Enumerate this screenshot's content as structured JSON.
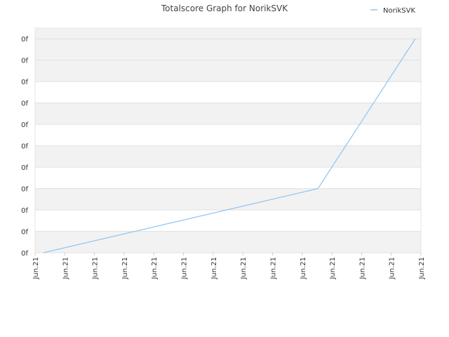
{
  "chart_data": {
    "type": "line",
    "title": "Totalscore Graph for NorikSVK",
    "xlim": [
      0,
      13
    ],
    "xticks": [
      {
        "value": 0,
        "label": "Jun.21"
      },
      {
        "value": 1,
        "label": "Jun.21"
      },
      {
        "value": 2,
        "label": "Jun.21"
      },
      {
        "value": 3,
        "label": "Jun.21"
      },
      {
        "value": 4,
        "label": "Jun.21"
      },
      {
        "value": 5,
        "label": "Jun.21"
      },
      {
        "value": 6,
        "label": "Jun.21"
      },
      {
        "value": 7,
        "label": "Jun.21"
      },
      {
        "value": 8,
        "label": "Jun.21"
      },
      {
        "value": 9,
        "label": "Jun.21"
      },
      {
        "value": 10,
        "label": "Jun.21"
      },
      {
        "value": 11,
        "label": "Jun.21"
      },
      {
        "value": 12,
        "label": "Jun.21"
      },
      {
        "value": 13,
        "label": "Jun.21"
      }
    ],
    "ylim": [
      0,
      10.5
    ],
    "yticks": [
      {
        "value": 0,
        "label": "0f"
      },
      {
        "value": 1,
        "label": "0f"
      },
      {
        "value": 2,
        "label": "0f"
      },
      {
        "value": 3,
        "label": "0f"
      },
      {
        "value": 4,
        "label": "0f"
      },
      {
        "value": 5,
        "label": "0f"
      },
      {
        "value": 6,
        "label": "0f"
      },
      {
        "value": 7,
        "label": "0f"
      },
      {
        "value": 8,
        "label": "0f"
      },
      {
        "value": 9,
        "label": "0f"
      },
      {
        "value": 10,
        "label": "0f"
      }
    ],
    "grid": true,
    "legend": "top-right",
    "series": [
      {
        "name": "NorikSVK",
        "color": "#90c4f0",
        "x": [
          0.28,
          9.53,
          12.81
        ],
        "values": [
          0,
          3,
          10
        ]
      }
    ]
  }
}
